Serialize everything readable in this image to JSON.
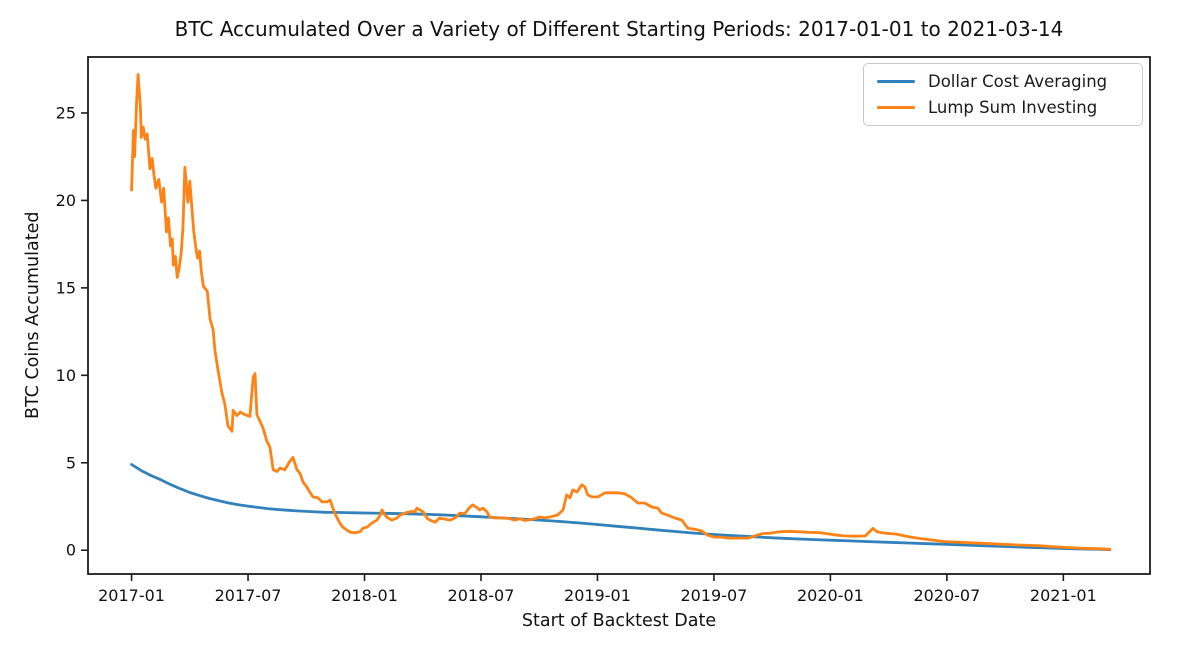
{
  "figure": {
    "background": "#ffffff",
    "text_color": "#111111",
    "spine_color": "#1c1c1c"
  },
  "chart_data": {
    "type": "line",
    "title": "BTC Accumulated Over a Variety of Different Starting Periods: 2017-01-01 to 2021-03-14",
    "xlabel": "Start of Backtest Date",
    "ylabel": "BTC Coins Accumulated",
    "x_unit": "decimal_year",
    "xlim": [
      2016.813,
      2021.372
    ],
    "ylim": [
      -1.36,
      28.2
    ],
    "grid": false,
    "legend": {
      "position": "upper right",
      "border_color": "#c9c9c9"
    },
    "x_ticks": [
      {
        "x": 2017.0,
        "label": "2017-01"
      },
      {
        "x": 2017.5,
        "label": "2017-07"
      },
      {
        "x": 2018.0,
        "label": "2018-01"
      },
      {
        "x": 2018.5,
        "label": "2018-07"
      },
      {
        "x": 2019.0,
        "label": "2019-01"
      },
      {
        "x": 2019.5,
        "label": "2019-07"
      },
      {
        "x": 2020.0,
        "label": "2020-01"
      },
      {
        "x": 2020.5,
        "label": "2020-07"
      },
      {
        "x": 2021.0,
        "label": "2021-01"
      }
    ],
    "y_ticks": [
      0,
      5,
      10,
      15,
      20,
      25
    ],
    "series": [
      {
        "name": "Dollar Cost Averaging",
        "color": "#3181bb",
        "points": [
          [
            2017.0,
            4.9
          ],
          [
            2017.042,
            4.55
          ],
          [
            2017.083,
            4.27
          ],
          [
            2017.125,
            4.03
          ],
          [
            2017.167,
            3.76
          ],
          [
            2017.208,
            3.52
          ],
          [
            2017.25,
            3.3
          ],
          [
            2017.292,
            3.12
          ],
          [
            2017.333,
            2.96
          ],
          [
            2017.375,
            2.83
          ],
          [
            2017.417,
            2.7
          ],
          [
            2017.458,
            2.6
          ],
          [
            2017.5,
            2.52
          ],
          [
            2017.542,
            2.45
          ],
          [
            2017.583,
            2.38
          ],
          [
            2017.625,
            2.33
          ],
          [
            2017.667,
            2.29
          ],
          [
            2017.708,
            2.25
          ],
          [
            2017.75,
            2.22
          ],
          [
            2017.792,
            2.19
          ],
          [
            2017.833,
            2.17
          ],
          [
            2017.875,
            2.16
          ],
          [
            2017.917,
            2.15
          ],
          [
            2017.958,
            2.14
          ],
          [
            2018.0,
            2.13
          ],
          [
            2018.083,
            2.11
          ],
          [
            2018.167,
            2.09
          ],
          [
            2018.25,
            2.06
          ],
          [
            2018.333,
            2.02
          ],
          [
            2018.417,
            1.97
          ],
          [
            2018.5,
            1.91
          ],
          [
            2018.583,
            1.85
          ],
          [
            2018.667,
            1.79
          ],
          [
            2018.75,
            1.72
          ],
          [
            2018.833,
            1.65
          ],
          [
            2018.917,
            1.56
          ],
          [
            2019.0,
            1.47
          ],
          [
            2019.083,
            1.37
          ],
          [
            2019.167,
            1.27
          ],
          [
            2019.25,
            1.17
          ],
          [
            2019.333,
            1.07
          ],
          [
            2019.417,
            0.98
          ],
          [
            2019.5,
            0.9
          ],
          [
            2019.583,
            0.83
          ],
          [
            2019.667,
            0.77
          ],
          [
            2019.75,
            0.71
          ],
          [
            2019.833,
            0.66
          ],
          [
            2019.917,
            0.61
          ],
          [
            2020.0,
            0.57
          ],
          [
            2020.083,
            0.53
          ],
          [
            2020.167,
            0.49
          ],
          [
            2020.25,
            0.45
          ],
          [
            2020.333,
            0.41
          ],
          [
            2020.417,
            0.37
          ],
          [
            2020.5,
            0.33
          ],
          [
            2020.583,
            0.29
          ],
          [
            2020.667,
            0.25
          ],
          [
            2020.75,
            0.21
          ],
          [
            2020.833,
            0.17
          ],
          [
            2020.917,
            0.14
          ],
          [
            2021.0,
            0.1
          ],
          [
            2021.083,
            0.07
          ],
          [
            2021.167,
            0.05
          ],
          [
            2021.2,
            0.03
          ]
        ]
      },
      {
        "name": "Lump Sum Investing",
        "color": "#fe8316",
        "points": [
          [
            2017.0,
            20.6
          ],
          [
            2017.004,
            22.3
          ],
          [
            2017.008,
            24.0
          ],
          [
            2017.013,
            22.5
          ],
          [
            2017.021,
            25.5
          ],
          [
            2017.028,
            27.2
          ],
          [
            2017.038,
            25.3
          ],
          [
            2017.042,
            23.6
          ],
          [
            2017.05,
            24.2
          ],
          [
            2017.058,
            23.5
          ],
          [
            2017.067,
            23.8
          ],
          [
            2017.079,
            21.8
          ],
          [
            2017.088,
            22.4
          ],
          [
            2017.096,
            21.5
          ],
          [
            2017.104,
            20.7
          ],
          [
            2017.117,
            21.2
          ],
          [
            2017.129,
            19.9
          ],
          [
            2017.138,
            20.7
          ],
          [
            2017.15,
            18.2
          ],
          [
            2017.158,
            19.0
          ],
          [
            2017.167,
            17.4
          ],
          [
            2017.175,
            17.8
          ],
          [
            2017.179,
            16.3
          ],
          [
            2017.188,
            16.8
          ],
          [
            2017.196,
            15.6
          ],
          [
            2017.204,
            16.1
          ],
          [
            2017.213,
            17.0
          ],
          [
            2017.221,
            18.5
          ],
          [
            2017.229,
            21.9
          ],
          [
            2017.242,
            19.9
          ],
          [
            2017.25,
            21.1
          ],
          [
            2017.258,
            19.7
          ],
          [
            2017.267,
            18.2
          ],
          [
            2017.275,
            17.4
          ],
          [
            2017.283,
            16.7
          ],
          [
            2017.292,
            17.1
          ],
          [
            2017.3,
            15.9
          ],
          [
            2017.308,
            15.1
          ],
          [
            2017.325,
            14.8
          ],
          [
            2017.337,
            13.2
          ],
          [
            2017.35,
            12.6
          ],
          [
            2017.358,
            11.4
          ],
          [
            2017.371,
            10.3
          ],
          [
            2017.388,
            9.0
          ],
          [
            2017.4,
            8.4
          ],
          [
            2017.414,
            7.1
          ],
          [
            2017.431,
            6.8
          ],
          [
            2017.436,
            8.0
          ],
          [
            2017.452,
            7.7
          ],
          [
            2017.467,
            7.9
          ],
          [
            2017.487,
            7.75
          ],
          [
            2017.508,
            7.65
          ],
          [
            2017.522,
            9.9
          ],
          [
            2017.53,
            10.1
          ],
          [
            2017.538,
            7.75
          ],
          [
            2017.552,
            7.36
          ],
          [
            2017.564,
            7.0
          ],
          [
            2017.582,
            6.2
          ],
          [
            2017.594,
            5.9
          ],
          [
            2017.608,
            4.6
          ],
          [
            2017.624,
            4.5
          ],
          [
            2017.638,
            4.7
          ],
          [
            2017.658,
            4.6
          ],
          [
            2017.68,
            5.1
          ],
          [
            2017.693,
            5.3
          ],
          [
            2017.71,
            4.6
          ],
          [
            2017.723,
            4.4
          ],
          [
            2017.736,
            3.9
          ],
          [
            2017.753,
            3.6
          ],
          [
            2017.766,
            3.3
          ],
          [
            2017.779,
            3.05
          ],
          [
            2017.8,
            3.0
          ],
          [
            2017.818,
            2.76
          ],
          [
            2017.839,
            2.76
          ],
          [
            2017.852,
            2.87
          ],
          [
            2017.873,
            2.1
          ],
          [
            2017.894,
            1.55
          ],
          [
            2017.907,
            1.32
          ],
          [
            2017.925,
            1.15
          ],
          [
            2017.938,
            1.03
          ],
          [
            2017.959,
            1.0
          ],
          [
            2017.981,
            1.05
          ],
          [
            2017.993,
            1.26
          ],
          [
            2018.011,
            1.32
          ],
          [
            2018.032,
            1.55
          ],
          [
            2018.053,
            1.72
          ],
          [
            2018.067,
            2.0
          ],
          [
            2018.075,
            2.3
          ],
          [
            2018.088,
            2.0
          ],
          [
            2018.101,
            1.84
          ],
          [
            2018.118,
            1.72
          ],
          [
            2018.139,
            1.84
          ],
          [
            2018.152,
            2.0
          ],
          [
            2018.173,
            2.12
          ],
          [
            2018.195,
            2.2
          ],
          [
            2018.217,
            2.2
          ],
          [
            2018.225,
            2.41
          ],
          [
            2018.238,
            2.3
          ],
          [
            2018.251,
            2.2
          ],
          [
            2018.268,
            1.84
          ],
          [
            2018.281,
            1.72
          ],
          [
            2018.303,
            1.6
          ],
          [
            2018.323,
            1.84
          ],
          [
            2018.345,
            1.78
          ],
          [
            2018.367,
            1.72
          ],
          [
            2018.388,
            1.84
          ],
          [
            2018.409,
            2.12
          ],
          [
            2018.431,
            2.1
          ],
          [
            2018.453,
            2.47
          ],
          [
            2018.465,
            2.59
          ],
          [
            2018.482,
            2.45
          ],
          [
            2018.495,
            2.3
          ],
          [
            2018.508,
            2.41
          ],
          [
            2018.525,
            2.2
          ],
          [
            2018.538,
            1.9
          ],
          [
            2018.559,
            1.84
          ],
          [
            2018.611,
            1.84
          ],
          [
            2018.645,
            1.72
          ],
          [
            2018.667,
            1.8
          ],
          [
            2018.688,
            1.7
          ],
          [
            2018.71,
            1.75
          ],
          [
            2018.731,
            1.8
          ],
          [
            2018.753,
            1.9
          ],
          [
            2018.774,
            1.85
          ],
          [
            2018.796,
            1.9
          ],
          [
            2018.826,
            2.0
          ],
          [
            2018.838,
            2.12
          ],
          [
            2018.852,
            2.3
          ],
          [
            2018.868,
            3.16
          ],
          [
            2018.882,
            2.99
          ],
          [
            2018.894,
            3.45
          ],
          [
            2018.912,
            3.33
          ],
          [
            2018.933,
            3.74
          ],
          [
            2018.946,
            3.62
          ],
          [
            2018.958,
            3.16
          ],
          [
            2018.976,
            3.05
          ],
          [
            2019.002,
            3.05
          ],
          [
            2019.032,
            3.28
          ],
          [
            2019.062,
            3.28
          ],
          [
            2019.088,
            3.28
          ],
          [
            2019.118,
            3.22
          ],
          [
            2019.148,
            2.99
          ],
          [
            2019.173,
            2.7
          ],
          [
            2019.203,
            2.7
          ],
          [
            2019.233,
            2.47
          ],
          [
            2019.259,
            2.41
          ],
          [
            2019.276,
            2.12
          ],
          [
            2019.302,
            2.0
          ],
          [
            2019.332,
            1.84
          ],
          [
            2019.362,
            1.72
          ],
          [
            2019.388,
            1.26
          ],
          [
            2019.418,
            1.2
          ],
          [
            2019.448,
            1.1
          ],
          [
            2019.473,
            0.86
          ],
          [
            2019.503,
            0.75
          ],
          [
            2019.533,
            0.75
          ],
          [
            2019.559,
            0.69
          ],
          [
            2019.589,
            0.69
          ],
          [
            2019.619,
            0.69
          ],
          [
            2019.645,
            0.69
          ],
          [
            2019.673,
            0.8
          ],
          [
            2019.708,
            0.95
          ],
          [
            2019.742,
            0.98
          ],
          [
            2019.783,
            1.05
          ],
          [
            2019.825,
            1.08
          ],
          [
            2019.867,
            1.05
          ],
          [
            2019.908,
            1.02
          ],
          [
            2019.958,
            1.0
          ],
          [
            2019.983,
            0.95
          ],
          [
            2020.017,
            0.88
          ],
          [
            2020.058,
            0.82
          ],
          [
            2020.108,
            0.8
          ],
          [
            2020.15,
            0.82
          ],
          [
            2020.183,
            1.25
          ],
          [
            2020.2,
            1.05
          ],
          [
            2020.233,
            0.98
          ],
          [
            2020.283,
            0.92
          ],
          [
            2020.333,
            0.78
          ],
          [
            2020.383,
            0.67
          ],
          [
            2020.425,
            0.6
          ],
          [
            2020.483,
            0.5
          ],
          [
            2020.558,
            0.45
          ],
          [
            2020.642,
            0.4
          ],
          [
            2020.725,
            0.35
          ],
          [
            2020.808,
            0.3
          ],
          [
            2020.9,
            0.25
          ],
          [
            2020.983,
            0.18
          ],
          [
            2021.067,
            0.12
          ],
          [
            2021.158,
            0.08
          ],
          [
            2021.2,
            0.05
          ]
        ]
      }
    ]
  }
}
